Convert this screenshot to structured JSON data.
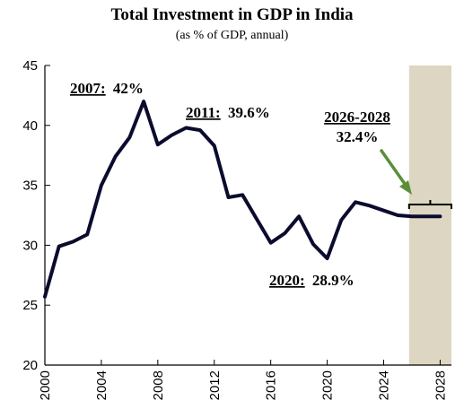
{
  "chart_data": {
    "type": "line",
    "title": "Total Investment in GDP in India",
    "subtitle": "(as % of GDP, annual)",
    "xlabel": "",
    "ylabel": "",
    "xlim": [
      2000,
      2028.8
    ],
    "ylim": [
      20,
      45
    ],
    "yticks": [
      20,
      25,
      30,
      35,
      40,
      45
    ],
    "xticks": [
      2000,
      2004,
      2008,
      2012,
      2016,
      2020,
      2024,
      2028
    ],
    "grid": false,
    "legend": "none",
    "colors": {
      "line": "#0b0b2e",
      "forecast_band": "#dcd6c2",
      "arrow": "#5a8f3a"
    },
    "series": [
      {
        "x": [
          2000,
          2001,
          2002,
          2003,
          2004,
          2005,
          2006,
          2007,
          2008,
          2009,
          2010,
          2011,
          2012,
          2013,
          2014,
          2015,
          2016,
          2017,
          2018,
          2019,
          2020,
          2021,
          2022,
          2023,
          2024,
          2025,
          2026,
          2027,
          2028
        ],
        "values": [
          25.7,
          29.9,
          30.3,
          30.9,
          35.0,
          37.4,
          39.0,
          42.0,
          38.4,
          39.2,
          39.8,
          39.6,
          38.3,
          34.0,
          34.2,
          32.2,
          30.2,
          31.0,
          32.4,
          30.1,
          28.9,
          32.1,
          33.6,
          33.3,
          32.9,
          32.5,
          32.4,
          32.4,
          32.4
        ]
      }
    ],
    "forecast_band": [
      2025.8,
      2028.8
    ],
    "annotations": {
      "a2007_year": "2007:",
      "a2007_value": "42%",
      "a2011_year": "2011:",
      "a2011_value": "39.6%",
      "a2020_year": "2020:",
      "a2020_value": "28.9%",
      "a2026_label": "2026-2028",
      "a2026_value": "32.4%"
    }
  }
}
